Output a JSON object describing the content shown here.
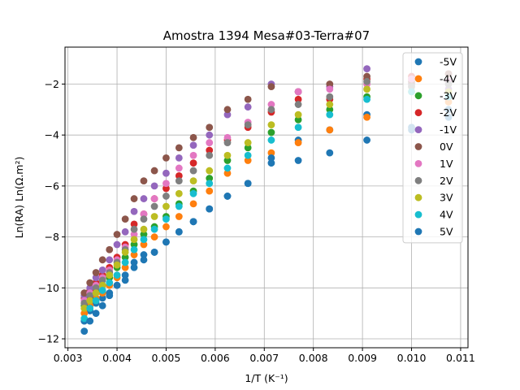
{
  "chart_data": {
    "type": "scatter",
    "title": "Amostra 1394 Mesa#03-Terra#07",
    "xlabel": "1/T (K⁻¹)",
    "ylabel": "Ln(RA) Ln(Ω.m²)",
    "xlim": [
      0.00294,
      0.01115
    ],
    "ylim": [
      -12.35,
      -0.55
    ],
    "xticks": [
      0.003,
      0.004,
      0.005,
      0.006,
      0.007,
      0.008,
      0.009,
      0.01,
      0.011
    ],
    "xtick_labels": [
      "0.003",
      "0.004",
      "0.005",
      "0.006",
      "0.007",
      "0.008",
      "0.009",
      "0.010",
      "0.011"
    ],
    "yticks": [
      -12,
      -10,
      -8,
      -6,
      -4,
      -2
    ],
    "ytick_labels": [
      "−12",
      "−10",
      "−8",
      "−6",
      "−4",
      "−2"
    ],
    "grid": true,
    "legend_position": "top-right",
    "x": [
      0.003333,
      0.003448,
      0.003571,
      0.003704,
      0.003846,
      0.004,
      0.004167,
      0.004348,
      0.004545,
      0.004762,
      0.005,
      0.005263,
      0.005556,
      0.005882,
      0.00625,
      0.006667,
      0.007143,
      0.007692,
      0.008333,
      0.009091,
      0.01,
      0.010753
    ],
    "series": [
      {
        "name": "-5V",
        "color": "#1f77b4",
        "values": [
          -11.3,
          -10.9,
          -10.6,
          -10.4,
          -10.2,
          -9.9,
          -9.5,
          -9.0,
          -8.7,
          -8.6,
          -8.2,
          -7.8,
          -7.4,
          -6.9,
          -6.4,
          -5.9,
          -5.1,
          -4.2,
          -3.8,
          -3.2,
          -3.7,
          -3.0
        ]
      },
      {
        "name": "-4V",
        "color": "#ff7f0e",
        "values": [
          -11.0,
          -10.7,
          -10.4,
          -10.2,
          -9.9,
          -9.6,
          -9.2,
          -8.7,
          -8.3,
          -8.0,
          -7.6,
          -7.2,
          -6.7,
          -6.2,
          -5.5,
          -5.0,
          -4.7,
          -4.3,
          -3.8,
          -3.3,
          -1.8,
          -2.7
        ]
      },
      {
        "name": "-3V",
        "color": "#2ca02c",
        "values": [
          -10.7,
          -10.4,
          -10.1,
          -9.9,
          -9.6,
          -9.2,
          -8.8,
          -8.3,
          -7.9,
          -7.6,
          -7.2,
          -6.7,
          -6.2,
          -5.7,
          -5.0,
          -4.5,
          -3.9,
          -3.4,
          -3.0,
          -2.5,
          -2.0,
          -1.9
        ]
      },
      {
        "name": "-2V",
        "color": "#d62728",
        "values": [
          -10.4,
          -10.1,
          -9.8,
          -9.5,
          -9.2,
          -8.8,
          -8.3,
          -7.5,
          -7.1,
          -6.5,
          -6.1,
          -5.6,
          -5.1,
          -4.6,
          -4.2,
          -3.7,
          -3.1,
          -2.6,
          -2.6,
          -1.8,
          -1.7,
          -1.6
        ]
      },
      {
        "name": "-1V",
        "color": "#9467bd",
        "values": [
          -10.3,
          -10.0,
          -9.6,
          -9.3,
          -8.9,
          -8.3,
          -7.8,
          -7.0,
          -6.5,
          -6.0,
          -5.5,
          -4.9,
          -4.4,
          -4.0,
          -3.2,
          -2.9,
          -2.0,
          -2.3,
          -2.1,
          -1.4,
          -2.0,
          -2.2
        ]
      },
      {
        "name": "0V",
        "color": "#8c564b",
        "values": [
          -10.2,
          -9.8,
          -9.4,
          -8.9,
          -8.5,
          -7.9,
          -7.3,
          -6.5,
          -5.8,
          -5.4,
          -4.9,
          -4.5,
          -4.1,
          -3.7,
          -3.0,
          -2.6,
          -2.1,
          -2.3,
          -2.0,
          -1.7,
          -1.9,
          -1.6
        ]
      },
      {
        "name": "1V",
        "color": "#e377c2",
        "values": [
          -10.5,
          -10.2,
          -9.9,
          -9.6,
          -9.3,
          -8.9,
          -8.4,
          -7.9,
          -7.1,
          -6.5,
          -5.9,
          -5.3,
          -4.8,
          -4.3,
          -4.1,
          -3.5,
          -2.8,
          -2.3,
          -2.2,
          -2.0,
          -1.8,
          -1.9
        ]
      },
      {
        "name": "2V",
        "color": "#7f7f7f",
        "values": [
          -10.6,
          -10.3,
          -10.0,
          -9.7,
          -9.4,
          -9.0,
          -8.5,
          -7.7,
          -7.3,
          -6.8,
          -6.4,
          -5.8,
          -5.4,
          -4.8,
          -4.3,
          -3.6,
          -3.0,
          -2.8,
          -2.5,
          -1.9,
          -2.1,
          -2.0
        ]
      },
      {
        "name": "3V",
        "color": "#bcbd22",
        "values": [
          -10.8,
          -10.5,
          -10.2,
          -9.9,
          -9.5,
          -9.1,
          -8.6,
          -8.1,
          -7.7,
          -7.2,
          -6.8,
          -6.3,
          -5.8,
          -5.4,
          -4.8,
          -4.3,
          -3.6,
          -3.2,
          -2.8,
          -2.2,
          -2.3,
          -2.3
        ]
      },
      {
        "name": "4V",
        "color": "#17becf",
        "values": [
          -11.2,
          -10.8,
          -10.5,
          -10.1,
          -9.8,
          -9.5,
          -9.0,
          -8.5,
          -8.1,
          -7.7,
          -7.3,
          -6.8,
          -6.3,
          -5.9,
          -5.3,
          -4.8,
          -4.2,
          -3.7,
          -3.2,
          -2.6,
          -2.3,
          -2.5
        ]
      },
      {
        "name": "5V",
        "color": "#1f77b4",
        "values": [
          -11.7,
          -11.3,
          -11.0,
          -10.7,
          -10.3,
          -9.9,
          -9.7,
          -9.2,
          -8.9,
          -8.6,
          -8.2,
          -7.8,
          -7.4,
          -6.9,
          -6.4,
          -5.9,
          -4.9,
          -5.0,
          -4.7,
          -4.2,
          -3.8,
          -3.3
        ]
      }
    ]
  }
}
